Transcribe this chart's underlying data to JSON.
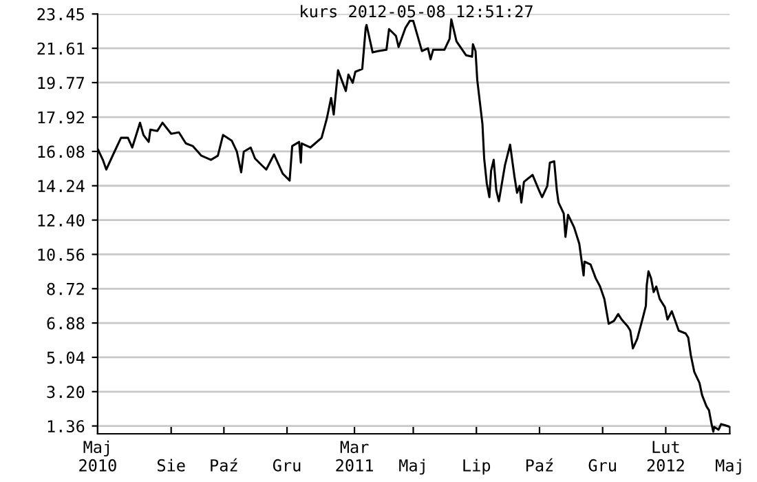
{
  "chart_data": {
    "type": "line",
    "title": "kurs 2012-05-08 12:51:27",
    "x": [
      "2010-05-08",
      "2010-05-14",
      "2010-05-18",
      "2010-05-26",
      "2010-06-04",
      "2010-06-12",
      "2010-06-17",
      "2010-06-26",
      "2010-06-30",
      "2010-07-06",
      "2010-07-08",
      "2010-07-16",
      "2010-07-22",
      "2010-08-01",
      "2010-08-10",
      "2010-08-18",
      "2010-08-26",
      "2010-09-05",
      "2010-09-16",
      "2010-09-24",
      "2010-09-30",
      "2010-10-10",
      "2010-10-16",
      "2010-10-21",
      "2010-10-24",
      "2010-11-01",
      "2010-11-06",
      "2010-11-14",
      "2010-11-19",
      "2010-11-28",
      "2010-12-08",
      "2010-12-16",
      "2010-12-19",
      "2010-12-27",
      "2010-12-29",
      "2010-12-30",
      "2011-01-09",
      "2011-01-22",
      "2011-01-28",
      "2011-02-02",
      "2011-02-05",
      "2011-02-07",
      "2011-02-10",
      "2011-02-16",
      "2011-02-19",
      "2011-02-22",
      "2011-02-27",
      "2011-03-02",
      "2011-03-10",
      "2011-03-14",
      "2011-03-15",
      "2011-03-22",
      "2011-03-28",
      "2011-04-07",
      "2011-04-10",
      "2011-04-18",
      "2011-04-21",
      "2011-04-29",
      "2011-05-04",
      "2011-05-08",
      "2011-05-18",
      "2011-05-25",
      "2011-05-28",
      "2011-05-31",
      "2011-06-13",
      "2011-06-19",
      "2011-06-21",
      "2011-06-27",
      "2011-07-08",
      "2011-07-15",
      "2011-07-16",
      "2011-07-19",
      "2011-07-21",
      "2011-07-27",
      "2011-07-29",
      "2011-08-01",
      "2011-08-04",
      "2011-08-06",
      "2011-08-09",
      "2011-08-12",
      "2011-08-15",
      "2011-08-22",
      "2011-08-28",
      "2011-09-02",
      "2011-09-05",
      "2011-09-08",
      "2011-09-10",
      "2011-09-13",
      "2011-09-23",
      "2011-10-01",
      "2011-10-04",
      "2011-10-10",
      "2011-10-13",
      "2011-10-18",
      "2011-10-21",
      "2011-10-23",
      "2011-10-29",
      "2011-10-31",
      "2011-11-03",
      "2011-11-10",
      "2011-11-16",
      "2011-11-21",
      "2011-11-22",
      "2011-11-29",
      "2011-12-05",
      "2011-12-10",
      "2011-12-15",
      "2011-12-20",
      "2011-12-26",
      "2011-12-31",
      "2012-01-04",
      "2012-01-11",
      "2012-01-14",
      "2012-01-17",
      "2012-01-22",
      "2012-01-28",
      "2012-02-01",
      "2012-02-02",
      "2012-02-04",
      "2012-02-07",
      "2012-02-10",
      "2012-02-13",
      "2012-02-17",
      "2012-02-23",
      "2012-02-26",
      "2012-03-02",
      "2012-03-10",
      "2012-03-18",
      "2012-03-21",
      "2012-03-24",
      "2012-03-28",
      "2012-04-03",
      "2012-04-06",
      "2012-04-11",
      "2012-04-14",
      "2012-04-17",
      "2012-04-19",
      "2012-04-20",
      "2012-04-25",
      "2012-04-28",
      "2012-05-03",
      "2012-05-08"
    ],
    "series": [
      {
        "color": "#000000",
        "values": [
          16.22,
          15.63,
          15.11,
          15.92,
          16.81,
          16.81,
          16.29,
          17.62,
          16.96,
          16.59,
          17.25,
          17.18,
          17.62,
          17.03,
          17.1,
          16.51,
          16.37,
          15.85,
          15.63,
          15.85,
          16.96,
          16.66,
          16.07,
          14.96,
          16.07,
          16.29,
          15.7,
          15.33,
          15.11,
          15.92,
          14.89,
          14.52,
          16.37,
          16.59,
          15.48,
          16.51,
          16.29,
          16.81,
          17.84,
          18.95,
          18.06,
          19.02,
          20.43,
          19.69,
          19.32,
          20.2,
          19.76,
          20.35,
          20.5,
          22.71,
          22.86,
          21.39,
          21.46,
          21.53,
          22.64,
          22.27,
          21.68,
          22.71,
          23.08,
          23.08,
          21.46,
          21.61,
          21.02,
          21.53,
          21.53,
          22.12,
          23.16,
          21.98,
          21.24,
          21.16,
          21.83,
          21.46,
          19.91,
          17.55,
          15.7,
          14.37,
          13.63,
          15.04,
          15.63,
          14.0,
          13.41,
          15.33,
          16.44,
          14.74,
          13.86,
          14.23,
          13.34,
          14.45,
          14.82,
          13.93,
          13.63,
          14.23,
          15.48,
          15.55,
          14.0,
          13.34,
          12.75,
          11.5,
          12.68,
          12.01,
          11.13,
          9.43,
          10.17,
          10.02,
          9.28,
          8.84,
          8.17,
          6.84,
          6.99,
          7.36,
          7.07,
          6.7,
          6.47,
          5.52,
          6.03,
          7.07,
          7.8,
          8.91,
          9.65,
          9.28,
          8.54,
          8.84,
          8.17,
          7.73,
          7.07,
          7.51,
          6.47,
          6.32,
          6.1,
          5.15,
          4.26,
          3.67,
          3.01,
          2.42,
          2.2,
          1.46,
          1.05,
          1.31,
          1.16,
          1.46,
          1.39,
          1.31
        ]
      }
    ],
    "xlim": [
      "2010-05-08",
      "2012-05-08"
    ],
    "xticks": [
      {
        "value": "2010-05-08",
        "label": "Maj\n2010"
      },
      {
        "value": "2010-08-01",
        "label": "Sie"
      },
      {
        "value": "2010-10-01",
        "label": "Paź"
      },
      {
        "value": "2010-12-13",
        "label": "Gru"
      },
      {
        "value": "2011-03-01",
        "label": "Mar\n2011"
      },
      {
        "value": "2011-05-08",
        "label": "Maj"
      },
      {
        "value": "2011-07-20",
        "label": "Lip"
      },
      {
        "value": "2011-10-01",
        "label": "Paź"
      },
      {
        "value": "2011-12-13",
        "label": "Gru"
      },
      {
        "value": "2012-02-24",
        "label": "Lut\n2012"
      },
      {
        "value": "2012-05-08",
        "label": "Maj"
      }
    ],
    "ylim": [
      0.94,
      23.45
    ],
    "yticks": [
      {
        "value": 1.36,
        "label": "1.36"
      },
      {
        "value": 3.2,
        "label": "3.20"
      },
      {
        "value": 5.04,
        "label": "5.04"
      },
      {
        "value": 6.88,
        "label": "6.88"
      },
      {
        "value": 8.72,
        "label": "8.72"
      },
      {
        "value": 10.56,
        "label": "10.56"
      },
      {
        "value": 12.4,
        "label": "12.40"
      },
      {
        "value": 14.24,
        "label": "14.24"
      },
      {
        "value": 16.08,
        "label": "16.08"
      },
      {
        "value": 17.92,
        "label": "17.92"
      },
      {
        "value": 19.77,
        "label": "19.77"
      },
      {
        "value": 21.61,
        "label": "21.61"
      },
      {
        "value": 23.45,
        "label": "23.45"
      }
    ],
    "grid": "y",
    "marker": "none",
    "line_style": "solid"
  }
}
